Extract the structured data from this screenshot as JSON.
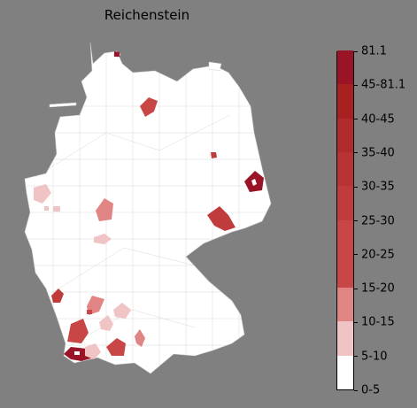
{
  "title": "Reichenstein",
  "legend": {
    "labels": [
      "0-5",
      "5-10",
      "10-15",
      "15-20",
      "20-25",
      "25-30",
      "30-35",
      "35-40",
      "40-45",
      "45-81.1",
      "81.1"
    ],
    "colors": [
      "#ffffff",
      "#f0c4c4",
      "#e08484",
      "#c84646",
      "#c84646",
      "#c03c3c",
      "#b83434",
      "#b02c2c",
      "#a82020",
      "#9a1428"
    ]
  },
  "map": {
    "country": "Germany",
    "highlighted_regions": [
      {
        "area": "Schleswig-Holstein coast",
        "category": "45-81.1"
      },
      {
        "area": "Hamburg area",
        "category": "20-25"
      },
      {
        "area": "Berlin area",
        "category": "35-40"
      },
      {
        "area": "Lusatia east",
        "category": "45-81.1"
      },
      {
        "area": "Saxony east",
        "category": "25-30"
      },
      {
        "area": "North Rhine-Westphalia west",
        "category": "10-15"
      },
      {
        "area": "Hesse north",
        "category": "10-15"
      },
      {
        "area": "Hesse central",
        "category": "10-15"
      },
      {
        "area": "Saarland",
        "category": "25-30"
      },
      {
        "area": "Baden north",
        "category": "15-20"
      },
      {
        "area": "Baden-Wuerttemberg central",
        "category": "10-15"
      },
      {
        "area": "Baden west",
        "category": "20-25"
      },
      {
        "area": "Breisgau",
        "category": "45-81.1"
      },
      {
        "area": "Lake Constance",
        "category": "20-25"
      },
      {
        "area": "Bavaria west",
        "category": "10-15"
      }
    ]
  }
}
